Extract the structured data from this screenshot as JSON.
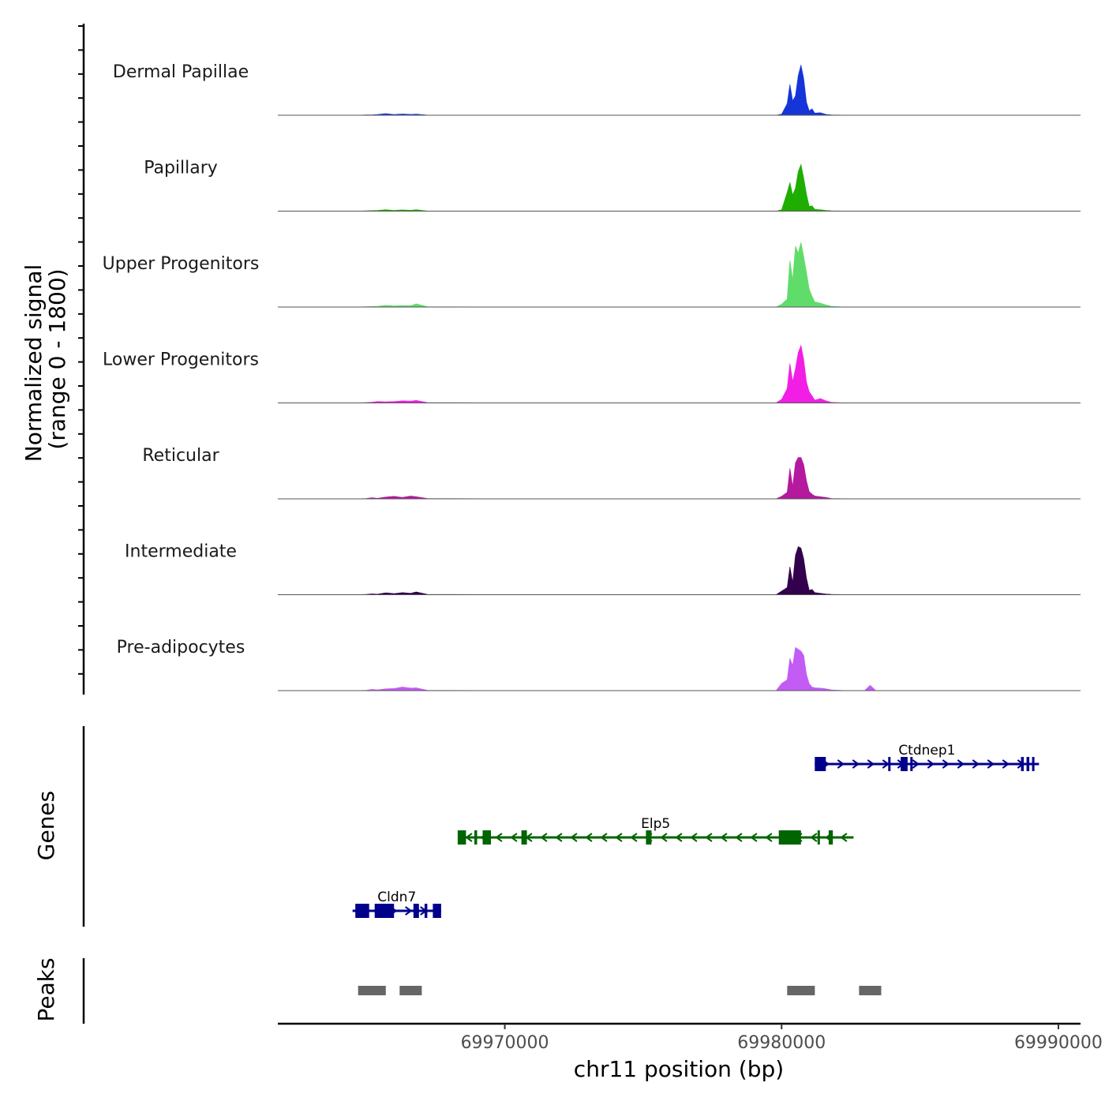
{
  "chart_data": {
    "type": "genome-coverage",
    "y_axis_title_line1": "Normalized signal",
    "y_axis_title_line2": "(range 0 - 1800)",
    "ylim": [
      0,
      1800
    ],
    "x_axis_title": "chr11 position (bp)",
    "xlim": [
      69961800,
      69990800
    ],
    "x_ticks": [
      69970000,
      69980000,
      69990000
    ],
    "x_tick_labels": [
      "69970000",
      "69980000",
      "69990000"
    ],
    "shared_profile_x": [
      69961800,
      69964800,
      69965000,
      69965200,
      69965400,
      69965700,
      69966000,
      69966300,
      69966600,
      69966800,
      69967200,
      69970000,
      69975000,
      69979800,
      69980000,
      69980200,
      69980300,
      69980400,
      69980500,
      69980600,
      69980700,
      69980800,
      69980900,
      69981000,
      69981100,
      69981200,
      69981400,
      69981600,
      69981800,
      69982200,
      69983000,
      69983200,
      69983400,
      69990800
    ],
    "tracks": [
      {
        "label": "Dermal Papillae",
        "color": "#1535d9",
        "values": [
          0,
          5,
          10,
          12,
          20,
          45,
          20,
          35,
          25,
          30,
          5,
          0,
          0,
          0,
          30,
          320,
          860,
          400,
          540,
          1100,
          1400,
          1020,
          360,
          120,
          180,
          60,
          70,
          25,
          10,
          5,
          5,
          5,
          0,
          0
        ]
      },
      {
        "label": "Papillary",
        "color": "#1fad00",
        "values": [
          0,
          5,
          8,
          15,
          20,
          40,
          20,
          35,
          25,
          40,
          5,
          0,
          0,
          0,
          40,
          520,
          800,
          450,
          640,
          1100,
          1300,
          920,
          470,
          130,
          150,
          50,
          40,
          20,
          10,
          5,
          5,
          5,
          0,
          0
        ]
      },
      {
        "label": "Upper Progenitors",
        "color": "#5fdc6a",
        "values": [
          0,
          5,
          10,
          15,
          20,
          45,
          30,
          40,
          35,
          90,
          10,
          0,
          0,
          0,
          80,
          220,
          1300,
          760,
          1700,
          1500,
          1800,
          1400,
          960,
          500,
          300,
          140,
          110,
          60,
          20,
          5,
          5,
          5,
          0,
          0
        ]
      },
      {
        "label": "Lower Progenitors",
        "color": "#f21ee6",
        "values": [
          0,
          5,
          10,
          20,
          40,
          30,
          40,
          60,
          50,
          70,
          10,
          0,
          0,
          0,
          100,
          400,
          1100,
          600,
          950,
          1400,
          1600,
          1200,
          580,
          310,
          200,
          80,
          120,
          60,
          15,
          5,
          5,
          5,
          0,
          0
        ]
      },
      {
        "label": "Reticular",
        "color": "#b5199e",
        "values": [
          0,
          5,
          10,
          30,
          15,
          50,
          70,
          40,
          80,
          60,
          10,
          0,
          0,
          0,
          70,
          180,
          850,
          350,
          1000,
          1150,
          1150,
          950,
          500,
          200,
          130,
          80,
          60,
          40,
          10,
          5,
          5,
          5,
          0,
          0
        ]
      },
      {
        "label": "Intermediate",
        "color": "#33004d",
        "values": [
          0,
          5,
          10,
          25,
          15,
          55,
          30,
          60,
          40,
          80,
          10,
          0,
          0,
          0,
          100,
          200,
          780,
          350,
          1100,
          1340,
          1300,
          1000,
          460,
          120,
          150,
          60,
          40,
          20,
          10,
          5,
          5,
          5,
          0,
          0
        ]
      },
      {
        "label": "Pre-adipocytes",
        "color": "#c25cf5",
        "values": [
          0,
          5,
          10,
          35,
          20,
          50,
          60,
          100,
          70,
          80,
          10,
          0,
          0,
          0,
          200,
          300,
          900,
          700,
          1200,
          1150,
          1100,
          980,
          450,
          190,
          100,
          80,
          70,
          50,
          20,
          5,
          5,
          150,
          5,
          0
        ]
      }
    ],
    "genes_panel_label": "Genes",
    "genes": [
      {
        "name": "Ctdnep1",
        "strand": "+",
        "color": "#00008b",
        "start": 69981200,
        "end": 69989300,
        "exons": [
          [
            69981200,
            69981600
          ],
          [
            69983850,
            69983900
          ],
          [
            69984300,
            69984550
          ],
          [
            69984650,
            69984700
          ],
          [
            69988650,
            69988750
          ],
          [
            69988850,
            69988950
          ],
          [
            69989050,
            69989100
          ]
        ]
      },
      {
        "name": "Elp5",
        "strand": "-",
        "color": "#006400",
        "start": 69968300,
        "end": 69982600,
        "exons": [
          [
            69968300,
            69968600
          ],
          [
            69968900,
            69969000
          ],
          [
            69969200,
            69969500
          ],
          [
            69970600,
            69970800
          ],
          [
            69975100,
            69975300
          ],
          [
            69979900,
            69980700
          ],
          [
            69981300,
            69981350
          ],
          [
            69981700,
            69981850
          ]
        ]
      },
      {
        "name": "Cldn7",
        "strand": "+",
        "color": "#00008b",
        "start": 69964500,
        "end": 69967700,
        "exons": [
          [
            69964600,
            69965100
          ],
          [
            69965300,
            69966000
          ],
          [
            69966700,
            69966900
          ],
          [
            69967100,
            69967200
          ],
          [
            69967400,
            69967700
          ]
        ]
      }
    ],
    "peaks_panel_label": "Peaks",
    "peaks_color": "#666666",
    "peaks": [
      [
        69964700,
        69965700
      ],
      [
        69966200,
        69967000
      ],
      [
        69980200,
        69981200
      ],
      [
        69982800,
        69983600
      ]
    ]
  }
}
